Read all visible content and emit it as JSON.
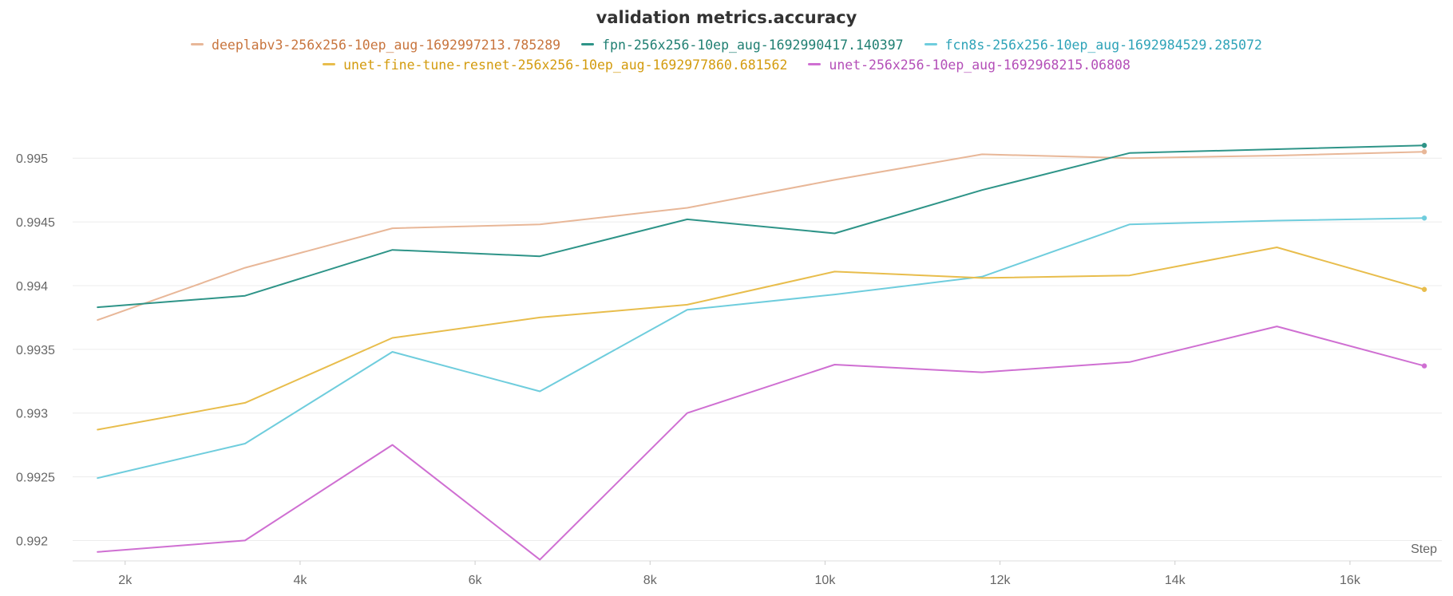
{
  "chart_data": {
    "type": "line",
    "title": "validation metrics.accuracy",
    "xlabel": "Step",
    "ylabel": "",
    "xlim": [
      1400,
      17050
    ],
    "ylim": [
      0.99184,
      0.99569
    ],
    "x_ticks": [
      2000,
      4000,
      6000,
      8000,
      10000,
      12000,
      14000,
      16000
    ],
    "x_tick_labels": [
      "2k",
      "4k",
      "6k",
      "8k",
      "10k",
      "12k",
      "14k",
      "16k"
    ],
    "y_ticks": [
      0.992,
      0.9925,
      0.993,
      0.9935,
      0.994,
      0.9945,
      0.995
    ],
    "y_tick_labels": [
      "0.992",
      "0.9925",
      "0.993",
      "0.9935",
      "0.994",
      "0.9945",
      "0.995"
    ],
    "grid": true,
    "legend_position": "top",
    "x": [
      1685,
      3370,
      5055,
      6740,
      8425,
      10110,
      11795,
      13480,
      15165,
      16850
    ],
    "series": [
      {
        "name": "deeplabv3-256x256-10ep_aug-1692997213.785289",
        "color": "#e8b798",
        "text_color": "#c8753e",
        "values": [
          0.99373,
          0.99414,
          0.99445,
          0.99448,
          0.99461,
          0.99483,
          0.99503,
          0.995,
          0.99502,
          0.99505
        ]
      },
      {
        "name": "fpn-256x256-10ep_aug-1692990417.140397",
        "color": "#2e9488",
        "text_color": "#1f7f72",
        "values": [
          0.99383,
          0.99392,
          0.99428,
          0.99423,
          0.99452,
          0.99441,
          0.99475,
          0.99504,
          0.99507,
          0.9951
        ]
      },
      {
        "name": "fcn8s-256x256-10ep_aug-1692984529.285072",
        "color": "#6fcddd",
        "text_color": "#2ea3b8",
        "values": [
          0.99249,
          0.99276,
          0.99348,
          0.99317,
          0.99381,
          0.99393,
          0.99407,
          0.99448,
          0.99451,
          0.99453
        ]
      },
      {
        "name": "unet-fine-tune-resnet-256x256-10ep_aug-1692977860.681562",
        "color": "#e8bd4c",
        "text_color": "#d39b0e",
        "values": [
          0.99287,
          0.99308,
          0.99359,
          0.99375,
          0.99385,
          0.99411,
          0.99406,
          0.99408,
          0.9943,
          0.99397
        ]
      },
      {
        "name": "unet-256x256-10ep_aug-1692968215.06808",
        "color": "#cf6fd2",
        "text_color": "#b44fb8",
        "values": [
          0.99191,
          0.992,
          0.99275,
          0.99185,
          0.993,
          0.99338,
          0.99332,
          0.9934,
          0.99368,
          0.99337
        ]
      }
    ]
  }
}
